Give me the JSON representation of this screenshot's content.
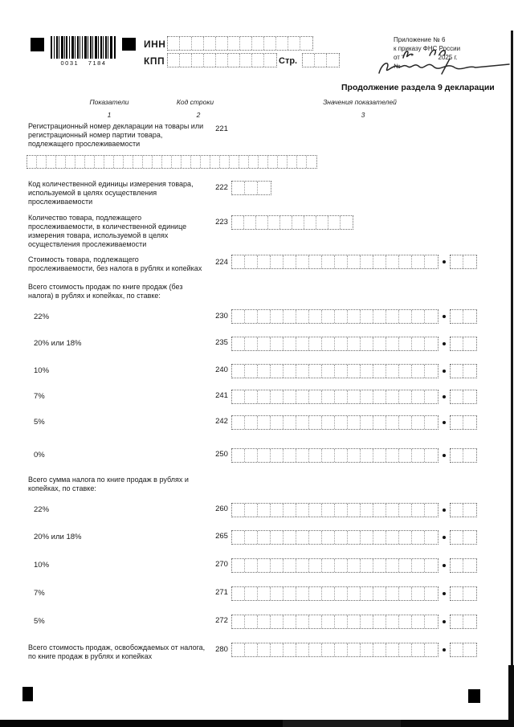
{
  "document": {
    "barcode_text": "0031 7184",
    "inn_label": "ИНН",
    "kpp_label": "КПП",
    "page_label": "Стр.",
    "appendix_note": {
      "line1": "Приложение № 6",
      "line2": "к приказу ФНС России",
      "line3": "от “    ”              2025 г.",
      "line4": "№"
    },
    "title": "Продолжение раздела 9 декларации",
    "table_header": {
      "col1_label": "Показатели",
      "col1_num": "1",
      "col2_label": "Код строки",
      "col2_num": "2",
      "col3_label": "Значения показателей",
      "col3_num": "3"
    },
    "rows": [
      {
        "label": "Регистрационный номер декларации на товары или регистрационный номер партии товара, подлежащего прослеживаемости",
        "code": "221"
      },
      {
        "label": "Код количественной единицы измерения товара, используемой в целях осуществления прослеживаемости",
        "code": "222"
      },
      {
        "label": "Количество товара, подлежащего прослеживаемости, в количественной единице измерения товара, используемой в целях осуществления прослеживаемости",
        "code": "223"
      },
      {
        "label": "Стоимость товара, подлежащего прослеживаемости, без налога в рублях и копейках",
        "code": "224"
      },
      {
        "label": "Всего стоимость продаж по книге продаж (без налога) в рублях и копейках, по ставке:",
        "code": ""
      },
      {
        "label": "22%",
        "code": "230"
      },
      {
        "label": "20% или 18%",
        "code": "235"
      },
      {
        "label": "10%",
        "code": "240"
      },
      {
        "label": "7%",
        "code": "241"
      },
      {
        "label": "5%",
        "code": "242"
      },
      {
        "label": "0%",
        "code": "250"
      },
      {
        "label": "Всего сумма налога по книге продаж в рублях и копейках, по ставке:",
        "code": ""
      },
      {
        "label": "22%",
        "code": "260"
      },
      {
        "label": "20% или 18%",
        "code": "265"
      },
      {
        "label": "10%",
        "code": "270"
      },
      {
        "label": "7%",
        "code": "271"
      },
      {
        "label": "5%",
        "code": "272"
      },
      {
        "label": "Всего стоимость продаж, освобождаемых от налога, по книге продаж в рублях и копейках",
        "code": "280"
      }
    ]
  }
}
